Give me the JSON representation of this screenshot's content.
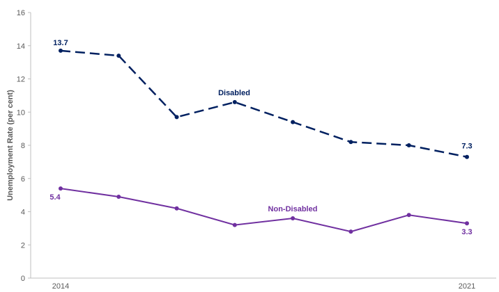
{
  "chart_data": {
    "type": "line",
    "title": "",
    "xlabel": "",
    "ylabel": "Unemployment Rate (per cent)",
    "ylim": [
      0,
      16
    ],
    "yticks": [
      0,
      2,
      4,
      6,
      8,
      10,
      12,
      14,
      16
    ],
    "x_tick_labels": [
      {
        "index": 0,
        "label": "2014"
      },
      {
        "index": 7,
        "label": "2021"
      }
    ],
    "grid": false,
    "legend": "none",
    "series": [
      {
        "name": "Disabled",
        "color": "#002060",
        "dash": "dashed",
        "values": [
          13.7,
          13.4,
          9.7,
          10.6,
          9.4,
          8.2,
          8.0,
          7.3
        ],
        "data_labels": [
          {
            "index": 0,
            "text": "13.7"
          },
          {
            "index": 7,
            "text": "7.3"
          }
        ]
      },
      {
        "name": "Non-Disabled",
        "color": "#7030A0",
        "dash": "solid",
        "values": [
          5.4,
          4.9,
          4.2,
          3.2,
          3.6,
          2.8,
          3.8,
          3.3
        ],
        "data_labels": [
          {
            "index": 0,
            "text": "5.4"
          },
          {
            "index": 7,
            "text": "3.3"
          }
        ]
      }
    ]
  }
}
